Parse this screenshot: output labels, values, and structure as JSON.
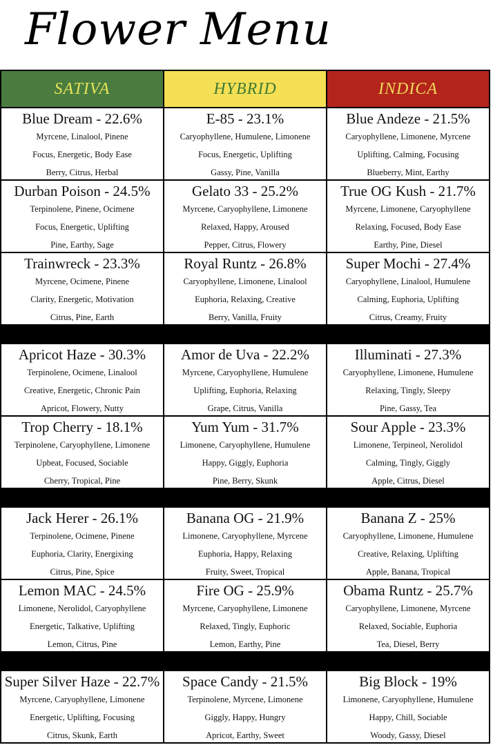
{
  "title": "Flower Menu",
  "colors": {
    "sativa_bg": "#4a7c3f",
    "sativa_text": "#e8e35a",
    "hybrid_bg": "#f5df55",
    "hybrid_text": "#3f7a33",
    "indica_bg": "#b3241b",
    "indica_text": "#f0d85a"
  },
  "headers": [
    "SATIVA",
    "HYBRID",
    "INDICA"
  ],
  "groups": [
    [
      [
        {
          "name": "Blue Dream - 22.6%",
          "terpenes": "Myrcene, Linalool, Pinene",
          "effects": "Focus, Energetic, Body Ease",
          "flavors": "Berry, Citrus, Herbal"
        },
        {
          "name": "E-85 - 23.1%",
          "terpenes": "Caryophyllene, Humulene, Limonene",
          "effects": "Focus, Energetic, Uplifting",
          "flavors": "Gassy, Pine, Vanilla"
        },
        {
          "name": "Blue Andeze - 21.5%",
          "terpenes": "Caryophyllene, Limonene, Myrcene",
          "effects": "Uplifting, Calming, Focusing",
          "flavors": "Blueberry, Mint, Earthy"
        }
      ],
      [
        {
          "name": "Durban Poison - 24.5%",
          "terpenes": "Terpinolene, Pinene, Ocimene",
          "effects": "Focus, Energetic, Uplifting",
          "flavors": "Pine, Earthy, Sage"
        },
        {
          "name": "Gelato 33 - 25.2%",
          "terpenes": "Myrcene, Caryophyllene, Limonene",
          "effects": "Relaxed, Happy, Aroused",
          "flavors": "Pepper, Citrus, Flowery"
        },
        {
          "name": "True OG Kush - 21.7%",
          "terpenes": "Myrcene, Limonene, Caryophyllene",
          "effects": "Relaxing, Focused, Body Ease",
          "flavors": "Earthy, Pine, Diesel"
        }
      ],
      [
        {
          "name": "Trainwreck - 23.3%",
          "terpenes": "Myrcene, Ocimene, Pinene",
          "effects": "Clarity, Energetic, Motivation",
          "flavors": "Citrus, Pine, Earth"
        },
        {
          "name": "Royal Runtz - 26.8%",
          "terpenes": "Caryophyllene, Limonene, Linalool",
          "effects": "Euphoria, Relaxing, Creative",
          "flavors": "Berry, Vanilla, Fruity"
        },
        {
          "name": "Super Mochi - 27.4%",
          "terpenes": "Caryophyllene, Linalool, Humulene",
          "effects": "Calming, Euphoria, Uplifting",
          "flavors": "Citrus, Creamy, Fruity"
        }
      ]
    ],
    [
      [
        {
          "name": "Apricot Haze - 30.3%",
          "terpenes": "Terpinolene, Ocimene, Linalool",
          "effects": "Creative, Energetic, Chronic Pain",
          "flavors": "Apricot, Flowery, Nutty"
        },
        {
          "name": "Amor de Uva - 22.2%",
          "terpenes": "Myrcene, Caryophyllene, Humulene",
          "effects": "Uplifting, Euphoria, Relaxing",
          "flavors": "Grape, Citrus, Vanilla"
        },
        {
          "name": "Illuminati - 27.3%",
          "terpenes": "Caryophyllene, Limonene, Humulene",
          "effects": "Relaxing, Tingly, Sleepy",
          "flavors": "Pine, Gassy, Tea"
        }
      ],
      [
        {
          "name": "Trop Cherry - 18.1%",
          "terpenes": "Terpinolene, Caryophyllene, Limonene",
          "effects": "Upbeat, Focused, Sociable",
          "flavors": "Cherry, Tropical, Pine"
        },
        {
          "name": "Yum Yum - 31.7%",
          "terpenes": "Limonene, Caryophyllene, Humulene",
          "effects": "Happy, Giggly, Euphoria",
          "flavors": "Pine, Berry, Skunk"
        },
        {
          "name": "Sour Apple - 23.3%",
          "terpenes": "Limonene, Terpineol, Nerolidol",
          "effects": "Calming, Tingly, Giggly",
          "flavors": "Apple, Citrus, Diesel"
        }
      ]
    ],
    [
      [
        {
          "name": "Jack Herer - 26.1%",
          "terpenes": "Terpinolene, Ocimene, Pinene",
          "effects": "Euphoria, Clarity, Energixing",
          "flavors": "Citrus, Pine, Spice"
        },
        {
          "name": "Banana OG - 21.9%",
          "terpenes": "Limonene, Caryophyllene, Myrcene",
          "effects": "Euphoria, Happy, Relaxing",
          "flavors": "Fruity, Sweet, Tropical"
        },
        {
          "name": "Banana Z - 25%",
          "terpenes": "Caryophyllene, Limonene, Humulene",
          "effects": "Creative, Relaxing, Uplifting",
          "flavors": "Apple, Banana, Tropical"
        }
      ],
      [
        {
          "name": "Lemon MAC - 24.5%",
          "terpenes": "Limonene, Nerolidol, Caryophyllene",
          "effects": "Energetic, Talkative, Uplifting",
          "flavors": "Lemon, Citrus, Pine"
        },
        {
          "name": "Fire OG - 25.9%",
          "terpenes": "Myrcene, Caryophyllene, Limonene",
          "effects": "Relaxed, Tingly, Euphoric",
          "flavors": "Lemon, Earthy, Pine"
        },
        {
          "name": "Obama Runtz - 25.7%",
          "terpenes": "Caryophyllene, Limonene, Myrcene",
          "effects": "Relaxed, Sociable, Euphoria",
          "flavors": "Tea, Diesel, Berry"
        }
      ]
    ],
    [
      [
        {
          "name": "Super Silver Haze - 22.7%",
          "terpenes": "Myrcene, Caryophyllene, Limonene",
          "effects": "Energetic, Uplifting, Focusing",
          "flavors": "Citrus, Skunk, Earth"
        },
        {
          "name": "Space Candy - 21.5%",
          "terpenes": "Terpinolene, Myrcene, Limonene",
          "effects": "Giggly, Happy, Hungry",
          "flavors": "Apricot, Earthy, Sweet"
        },
        {
          "name": "Big Block - 19%",
          "terpenes": "Limonene, Caryophyllene, Humulene",
          "effects": "Happy, Chill, Sociable",
          "flavors": "Woody, Gassy, Diesel"
        }
      ]
    ]
  ]
}
